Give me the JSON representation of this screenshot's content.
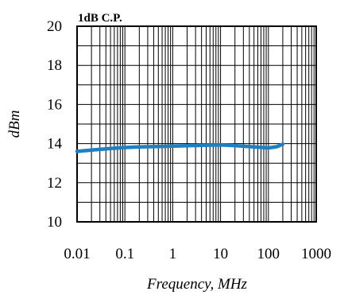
{
  "chart_data": {
    "type": "line",
    "title": "1dB C.P.",
    "xlabel": "Frequency, MHz",
    "ylabel": "dBm",
    "x_scale": "log",
    "xlim": [
      0.01,
      1000
    ],
    "ylim": [
      10,
      20
    ],
    "x_ticks": [
      "0.01",
      "0.1",
      "1",
      "10",
      "100",
      "1000"
    ],
    "y_ticks": [
      "10",
      "12",
      "14",
      "16",
      "18",
      "20"
    ],
    "grid": true,
    "series_color": "#1f7fc0",
    "series": [
      {
        "x": [
          0.01,
          0.02,
          0.05,
          0.1,
          0.2,
          0.5,
          1,
          2,
          5,
          10,
          20,
          50,
          100,
          150,
          200
        ],
        "y": [
          13.6,
          13.67,
          13.75,
          13.8,
          13.83,
          13.85,
          13.87,
          13.89,
          13.92,
          13.93,
          13.9,
          13.83,
          13.78,
          13.84,
          13.97
        ]
      }
    ]
  }
}
